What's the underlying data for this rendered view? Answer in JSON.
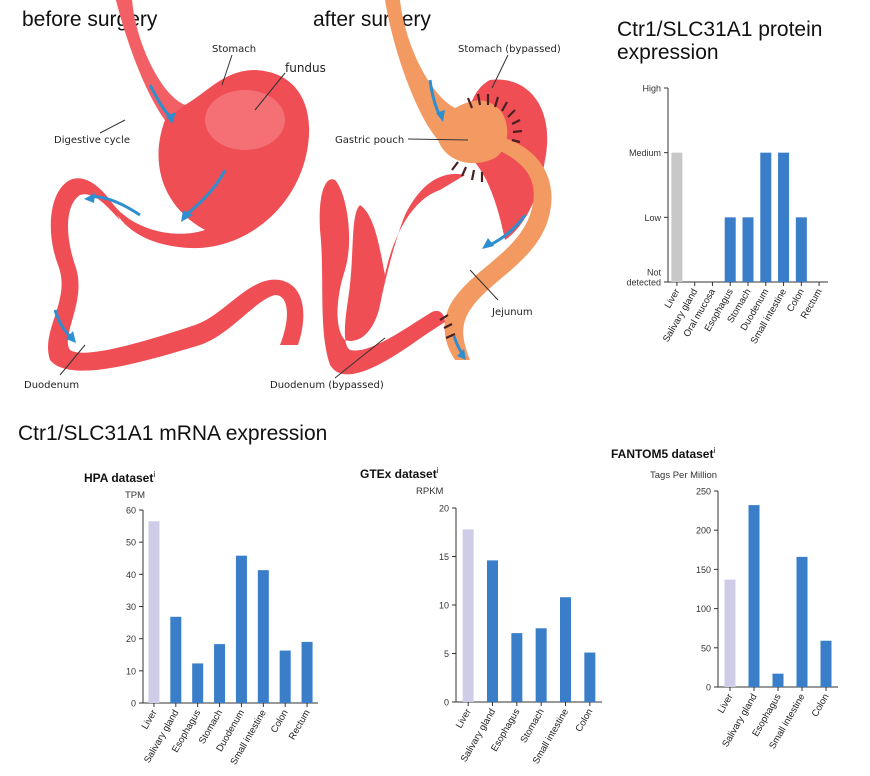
{
  "illustration": {
    "before_title": "before surgery",
    "after_title": "after surgery",
    "before_labels": {
      "stomach": "Stomach",
      "fundus": "fundus",
      "digestive_cycle": "Digestive cycle",
      "duodenum": "Duodenum"
    },
    "after_labels": {
      "stomach_bypassed": "Stomach (bypassed)",
      "gastric_pouch": "Gastric pouch",
      "jejunum": "Jejunum",
      "duodenum_bypassed": "Duodenum (bypassed)"
    },
    "colors": {
      "stomach": "#ef4e55",
      "stomach_highlight": "#f8878a",
      "pouch": "#f39a63",
      "arrow": "#2e8fd0"
    }
  },
  "protein_title": "Ctr1/SLC31A1 protein expression",
  "mrna_title": "Ctr1/SLC31A1 mRNA expression",
  "chart_data": [
    {
      "type": "bar",
      "title": "Ctr1/SLC31A1 protein expression",
      "ylabel": "",
      "y_levels": [
        "Not detected",
        "Low",
        "Medium",
        "High"
      ],
      "ylim": [
        0,
        3
      ],
      "categories": [
        "Liver",
        "Salivary gland",
        "Oral mucosa",
        "Esophagus",
        "Stomach",
        "Duodenum",
        "Small intestine",
        "Colon",
        "Rectum"
      ],
      "values": [
        2,
        0,
        0,
        1,
        1,
        2,
        2,
        1,
        0
      ],
      "bar_colors": [
        "#c8c8c8",
        "#3a7dc9",
        "#3a7dc9",
        "#3a7dc9",
        "#3a7dc9",
        "#3a7dc9",
        "#3a7dc9",
        "#3a7dc9",
        "#3a7dc9"
      ],
      "grid": false
    },
    {
      "type": "bar",
      "title": "HPA dataset",
      "title_sup": "i",
      "ylabel": "TPM",
      "ylim": [
        0,
        60
      ],
      "yticks": [
        0,
        10,
        20,
        30,
        40,
        50,
        60
      ],
      "categories": [
        "Liver",
        "Salivary gland",
        "Esophagus",
        "Stomach",
        "Duodenum",
        "Small intestine",
        "Colon",
        "Rectum"
      ],
      "values": [
        56.5,
        26.8,
        12.3,
        18.3,
        45.8,
        41.3,
        16.3,
        19
      ],
      "bar_colors": [
        "#cfcce8",
        "#3a7dc9",
        "#3a7dc9",
        "#3a7dc9",
        "#3a7dc9",
        "#3a7dc9",
        "#3a7dc9",
        "#3a7dc9"
      ],
      "grid": false
    },
    {
      "type": "bar",
      "title": "GTEx dataset",
      "title_sup": "i",
      "ylabel": "RPKM",
      "ylim": [
        0,
        20
      ],
      "yticks": [
        0,
        5,
        10,
        15,
        20
      ],
      "categories": [
        "Liver",
        "Salivary gland",
        "Esophagus",
        "Stomach",
        "Small intestine",
        "Colon"
      ],
      "values": [
        17.8,
        14.6,
        7.1,
        7.6,
        10.8,
        5.1
      ],
      "bar_colors": [
        "#cfcce8",
        "#3a7dc9",
        "#3a7dc9",
        "#3a7dc9",
        "#3a7dc9",
        "#3a7dc9"
      ],
      "grid": false
    },
    {
      "type": "bar",
      "title": "FANTOM5 dataset",
      "title_sup": "i",
      "ylabel": "Tags Per Million",
      "ylim": [
        0,
        250
      ],
      "yticks": [
        0,
        50,
        100,
        150,
        200,
        250
      ],
      "categories": [
        "Liver",
        "Salivary gland",
        "Esophagus",
        "Small intestine",
        "Colon"
      ],
      "values": [
        137,
        232,
        17,
        166,
        59
      ],
      "bar_colors": [
        "#cfcce8",
        "#3a7dc9",
        "#3a7dc9",
        "#3a7dc9",
        "#3a7dc9"
      ],
      "grid": false
    }
  ]
}
